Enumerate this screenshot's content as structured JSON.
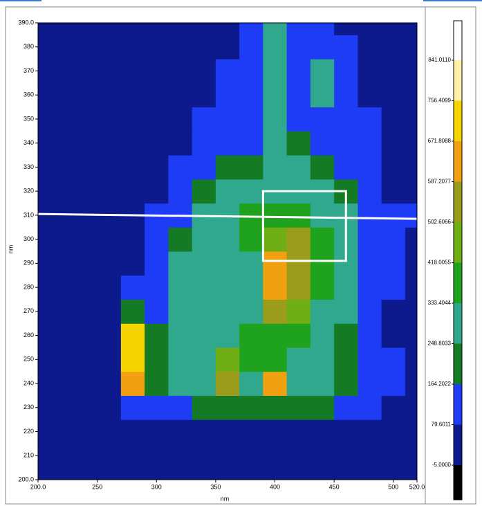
{
  "chart_data": {
    "type": "contour",
    "x_label": "nm",
    "y_label": "nm",
    "x": [
      200,
      220,
      240,
      260,
      280,
      300,
      320,
      340,
      360,
      380,
      400,
      420,
      440,
      460,
      480,
      500,
      520
    ],
    "y": [
      200,
      210,
      220,
      230,
      240,
      250,
      260,
      270,
      280,
      290,
      300,
      310,
      320,
      330,
      340,
      350,
      360,
      370,
      380,
      390
    ],
    "z": [
      [
        10,
        10,
        10,
        10,
        10,
        10,
        10,
        10,
        10,
        10,
        10,
        10,
        10,
        10,
        10,
        10,
        10
      ],
      [
        10,
        10,
        10,
        10,
        10,
        10,
        10,
        10,
        10,
        10,
        10,
        10,
        10,
        10,
        10,
        10,
        10
      ],
      [
        20,
        20,
        20,
        20,
        20,
        20,
        20,
        20,
        20,
        20,
        20,
        20,
        20,
        20,
        20,
        20,
        20
      ],
      [
        20,
        20,
        20,
        20,
        100,
        100,
        130,
        200,
        220,
        200,
        220,
        200,
        200,
        150,
        110,
        30,
        20
      ],
      [
        20,
        20,
        20,
        20,
        650,
        180,
        250,
        250,
        550,
        300,
        600,
        300,
        250,
        200,
        120,
        130,
        20
      ],
      [
        20,
        20,
        20,
        20,
        720,
        220,
        250,
        300,
        500,
        400,
        400,
        300,
        280,
        230,
        120,
        100,
        20
      ],
      [
        20,
        20,
        20,
        20,
        700,
        200,
        250,
        300,
        300,
        350,
        400,
        380,
        300,
        240,
        130,
        20,
        20
      ],
      [
        20,
        20,
        20,
        20,
        180,
        150,
        280,
        300,
        280,
        300,
        580,
        500,
        300,
        250,
        140,
        20,
        20
      ],
      [
        20,
        20,
        20,
        20,
        100,
        120,
        300,
        280,
        260,
        320,
        620,
        580,
        350,
        300,
        150,
        90,
        20
      ],
      [
        20,
        20,
        20,
        20,
        20,
        110,
        250,
        300,
        280,
        300,
        600,
        560,
        380,
        300,
        160,
        100,
        20
      ],
      [
        20,
        20,
        20,
        20,
        20,
        110,
        200,
        300,
        320,
        340,
        500,
        550,
        400,
        280,
        150,
        110,
        30
      ],
      [
        20,
        20,
        20,
        20,
        20,
        100,
        150,
        250,
        300,
        350,
        380,
        360,
        330,
        250,
        140,
        110,
        110
      ],
      [
        20,
        20,
        20,
        20,
        20,
        20,
        110,
        200,
        250,
        300,
        330,
        300,
        250,
        180,
        120,
        60,
        20
      ],
      [
        20,
        20,
        20,
        20,
        20,
        20,
        100,
        110,
        200,
        220,
        320,
        250,
        180,
        130,
        110,
        40,
        20
      ],
      [
        20,
        20,
        20,
        20,
        20,
        20,
        20,
        110,
        120,
        150,
        300,
        180,
        140,
        120,
        110,
        30,
        20
      ],
      [
        20,
        20,
        20,
        20,
        20,
        20,
        20,
        100,
        110,
        120,
        250,
        150,
        150,
        120,
        100,
        20,
        20
      ],
      [
        20,
        20,
        20,
        20,
        20,
        20,
        20,
        20,
        110,
        120,
        280,
        150,
        280,
        120,
        40,
        20,
        20
      ],
      [
        20,
        20,
        20,
        20,
        20,
        20,
        20,
        20,
        110,
        120,
        290,
        150,
        300,
        110,
        30,
        20,
        20
      ],
      [
        20,
        20,
        20,
        20,
        20,
        20,
        20,
        20,
        20,
        120,
        300,
        150,
        120,
        100,
        20,
        20,
        20
      ],
      [
        20,
        20,
        20,
        20,
        20,
        20,
        20,
        20,
        20,
        120,
        300,
        150,
        120,
        60,
        20,
        20,
        20
      ]
    ],
    "xlim": [
      200,
      520
    ],
    "ylim": [
      200,
      390
    ],
    "xticks": [
      {
        "value": 200,
        "label": "200.0"
      },
      250,
      300,
      350,
      400,
      450,
      500,
      {
        "value": 520,
        "label": "520.0"
      }
    ],
    "yticks": [
      {
        "value": 200,
        "label": "200.0"
      },
      210,
      220,
      230,
      240,
      250,
      260,
      270,
      280,
      290,
      300,
      310,
      320,
      330,
      340,
      350,
      360,
      370,
      380,
      {
        "value": 390,
        "label": "390.0"
      }
    ],
    "levels": [
      {
        "value": -5,
        "label": "-5.0000"
      },
      79.6011,
      164.2022,
      248.8033,
      333.4044,
      418.0055,
      502.6066,
      587.2077,
      671.8088,
      756.4099,
      {
        "value": 841.011,
        "label": "841.0110"
      }
    ],
    "colors": [
      "#000000",
      "#0c1a8e",
      "#1e3cf5",
      "#147a24",
      "#2fa88e",
      "#1fa31f",
      "#6fae14",
      "#9c9c1c",
      "#f0a010",
      "#f5d400",
      "#fff2a8",
      "#ffffff"
    ],
    "reference_line": {
      "x": [
        200,
        520
      ],
      "y": [
        310.5,
        308.5
      ]
    },
    "highlight": {
      "xlim": [
        390,
        460
      ],
      "ylim": [
        291,
        320
      ]
    }
  }
}
